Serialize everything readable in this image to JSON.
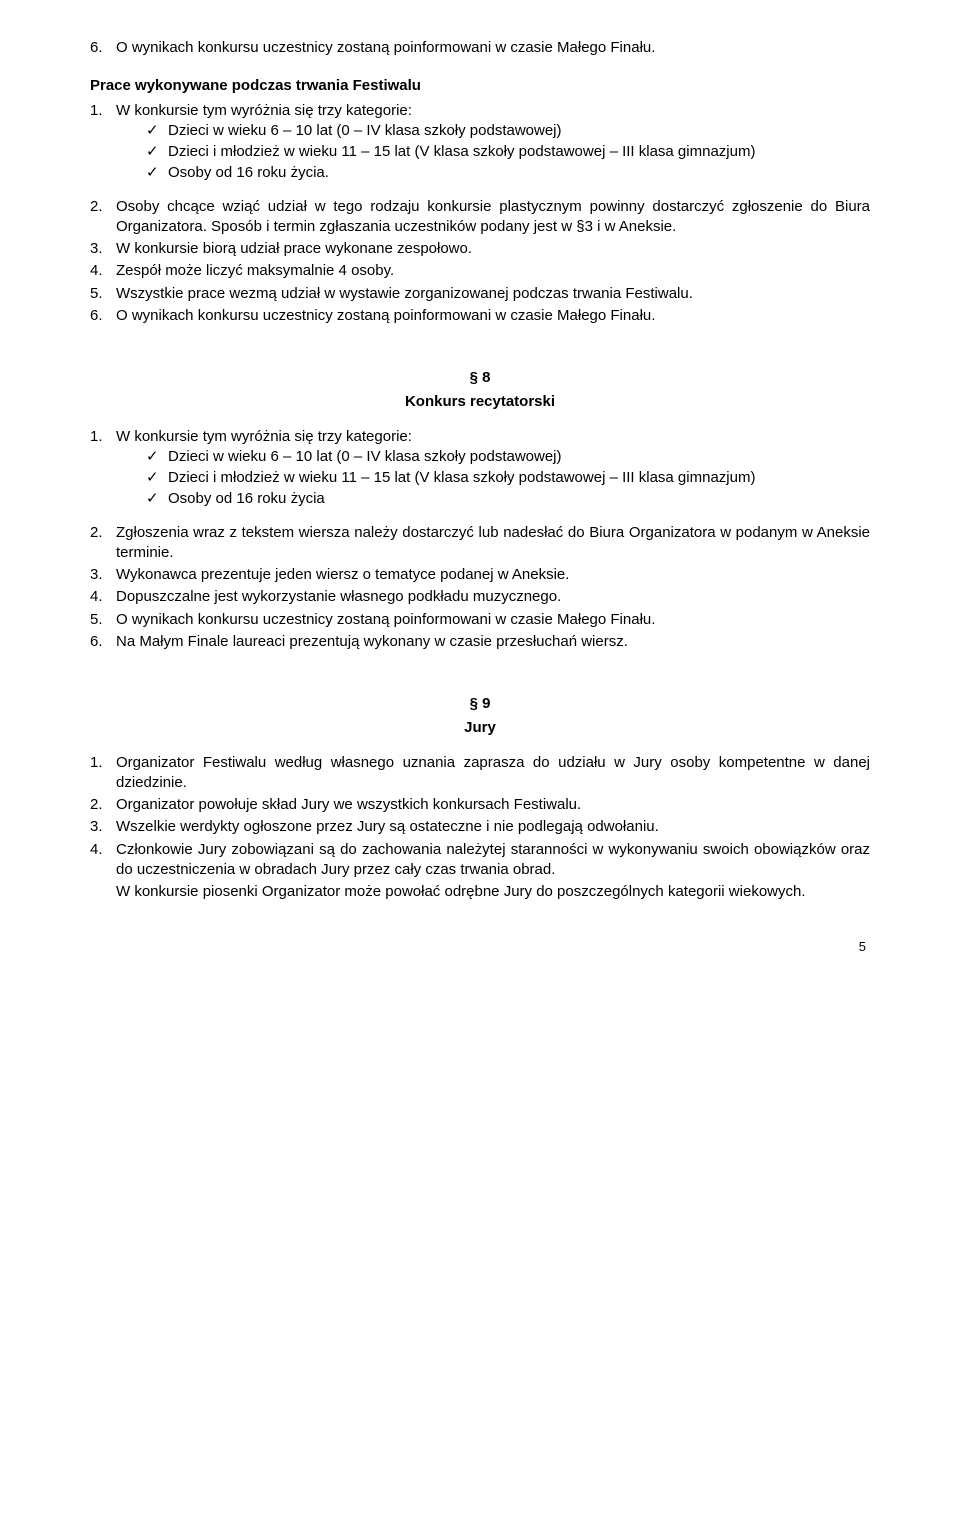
{
  "top": {
    "item6_num": "6.",
    "item6_text": "O wynikach konkursu uczestnicy zostaną poinformowani w czasie Małego Finału."
  },
  "prace": {
    "heading": "Prace wykonywane podczas trwania Festiwalu",
    "i1_num": "1.",
    "i1_text": "W konkursie tym wyróżnia się trzy kategorie:",
    "c1": "Dzieci w wieku 6 – 10 lat (0 – IV klasa szkoły podstawowej)",
    "c2": "Dzieci i młodzież w wieku 11 – 15 lat (V klasa szkoły podstawowej – III klasa gimnazjum)",
    "c3": "Osoby od 16 roku życia.",
    "i2_num": "2.",
    "i2_text": "Osoby chcące wziąć udział w tego rodzaju konkursie plastycznym powinny dostarczyć zgłoszenie do Biura Organizatora. Sposób i termin zgłaszania uczestników podany jest w §3 i w Aneksie.",
    "i3_num": "3.",
    "i3_text": "W konkursie biorą udział prace wykonane zespołowo.",
    "i4_num": "4.",
    "i4_text": "Zespół może liczyć maksymalnie 4 osoby.",
    "i5_num": "5.",
    "i5_text": "Wszystkie prace wezmą udział w wystawie zorganizowanej podczas trwania Festiwalu.",
    "i6_num": "6.",
    "i6_text": "O wynikach konkursu uczestnicy zostaną poinformowani w czasie Małego Finału."
  },
  "s8": {
    "num": "§ 8",
    "title": "Konkurs recytatorski",
    "i1_num": "1.",
    "i1_text": "W konkursie tym wyróżnia się trzy kategorie:",
    "c1": "Dzieci w wieku 6 – 10 lat (0 – IV klasa szkoły podstawowej)",
    "c2": "Dzieci i młodzież w wieku 11 – 15 lat (V klasa szkoły podstawowej – III klasa gimnazjum)",
    "c3": "Osoby od 16 roku życia",
    "i2_num": "2.",
    "i2_text": "Zgłoszenia wraz z tekstem wiersza należy  dostarczyć lub  nadesłać  do Biura Organizatora w podanym w Aneksie terminie.",
    "i3_num": "3.",
    "i3_text": "Wykonawca prezentuje jeden wiersz o tematyce podanej w Aneksie.",
    "i4_num": "4.",
    "i4_text": "Dopuszczalne jest wykorzystanie własnego podkładu muzycznego.",
    "i5_num": "5.",
    "i5_text": "O wynikach konkursu uczestnicy zostaną poinformowani w czasie Małego Finału.",
    "i6_num": "6.",
    "i6_text": "Na Małym Finale laureaci prezentują wykonany w czasie przesłuchań wiersz."
  },
  "s9": {
    "num": "§ 9",
    "title": "Jury",
    "i1_num": "1.",
    "i1_text": "Organizator Festiwalu według własnego uznania zaprasza do udziału w Jury osoby kompetentne w danej dziedzinie.",
    "i2_num": "2.",
    "i2_text": "Organizator powołuje skład Jury we wszystkich konkursach Festiwalu.",
    "i3_num": "3.",
    "i3_text": "Wszelkie werdykty ogłoszone przez Jury są ostateczne i nie podlegają odwołaniu.",
    "i4_num": "4.",
    "i4_text": "Członkowie Jury zobowiązani są do zachowania należytej staranności w wykonywaniu swoich obowiązków oraz do uczestniczenia w obradach Jury przez cały czas trwania obrad.",
    "i4_extra": "W konkursie piosenki Organizator może powołać odrębne Jury do poszczególnych kategorii wiekowych."
  },
  "check": "✓",
  "page_number": "5"
}
